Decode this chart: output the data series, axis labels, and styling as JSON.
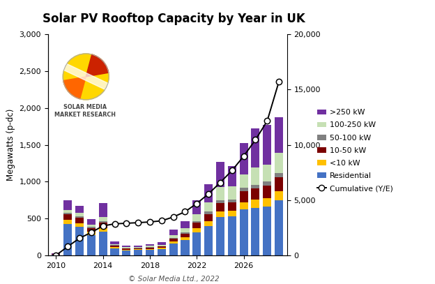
{
  "title": "Solar PV Rooftop Capacity by Year in UK",
  "ylabel_left": "Megawatts (p-dc)",
  "footnote": "© Solar Media Ltd., 2022",
  "years": [
    2010,
    2011,
    2012,
    2013,
    2014,
    2015,
    2016,
    2017,
    2018,
    2019,
    2020,
    2021,
    2022,
    2023,
    2024,
    2025,
    2026,
    2027,
    2028,
    2029
  ],
  "residential": [
    10,
    430,
    390,
    280,
    320,
    100,
    70,
    75,
    80,
    90,
    160,
    210,
    310,
    400,
    520,
    530,
    630,
    650,
    660,
    750
  ],
  "lt10kw": [
    5,
    55,
    50,
    40,
    55,
    15,
    10,
    10,
    12,
    15,
    28,
    38,
    58,
    68,
    78,
    78,
    95,
    105,
    115,
    125
  ],
  "k10_50": [
    5,
    75,
    75,
    55,
    75,
    20,
    15,
    15,
    18,
    18,
    38,
    52,
    75,
    95,
    115,
    115,
    145,
    155,
    170,
    185
  ],
  "k50_100": [
    2,
    18,
    18,
    13,
    18,
    5,
    4,
    4,
    5,
    7,
    13,
    18,
    27,
    32,
    37,
    37,
    47,
    52,
    57,
    62
  ],
  "k100_250": [
    3,
    35,
    45,
    35,
    55,
    18,
    13,
    13,
    16,
    18,
    37,
    55,
    90,
    130,
    180,
    180,
    180,
    230,
    230,
    270
  ],
  "gt250kw": [
    5,
    140,
    95,
    75,
    190,
    32,
    22,
    22,
    25,
    32,
    74,
    92,
    190,
    240,
    340,
    270,
    430,
    535,
    535,
    480
  ],
  "cumulative": [
    30,
    820,
    1570,
    2090,
    2680,
    2870,
    2920,
    2975,
    3040,
    3140,
    3490,
    3960,
    4710,
    5575,
    6600,
    7680,
    8980,
    10450,
    12150,
    15700
  ],
  "bar_colors": {
    "residential": "#4472C4",
    "lt10kw": "#FFC000",
    "k10_50": "#7B0000",
    "k50_100": "#808080",
    "k100_250": "#C6E0B4",
    "gt250kw": "#7030A0"
  },
  "ylim_left": [
    0,
    3000
  ],
  "ylim_right": [
    0,
    20000
  ],
  "yticks_left": [
    0,
    500,
    1000,
    1500,
    2000,
    2500,
    3000
  ],
  "yticks_right": [
    0,
    5000,
    10000,
    15000,
    20000
  ],
  "xticks": [
    2010,
    2014,
    2018,
    2022,
    2026
  ],
  "background_color": "#FFFFFF"
}
